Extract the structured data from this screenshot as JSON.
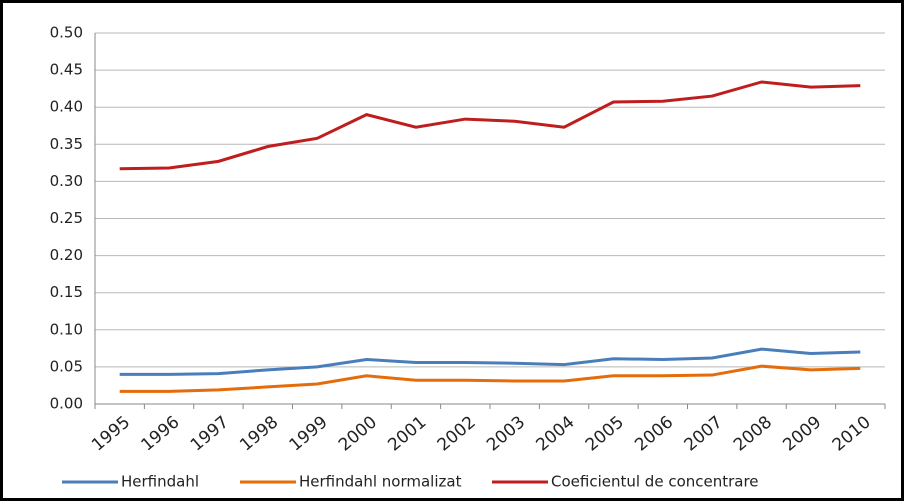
{
  "chart_data": {
    "type": "line",
    "categories": [
      "1995",
      "1996",
      "1997",
      "1998",
      "1999",
      "2000",
      "2001",
      "2002",
      "2003",
      "2004",
      "2005",
      "2006",
      "2007",
      "2008",
      "2009",
      "2010"
    ],
    "series": [
      {
        "name": "Herfindahl",
        "color": "#4a7ebb",
        "values": [
          0.04,
          0.04,
          0.041,
          0.046,
          0.05,
          0.06,
          0.056,
          0.056,
          0.055,
          0.053,
          0.061,
          0.06,
          0.062,
          0.074,
          0.068,
          0.07
        ]
      },
      {
        "name": "Herfindahl normalizat",
        "color": "#e46c0a",
        "values": [
          0.017,
          0.017,
          0.019,
          0.023,
          0.027,
          0.038,
          0.032,
          0.032,
          0.031,
          0.031,
          0.038,
          0.038,
          0.039,
          0.051,
          0.046,
          0.048
        ]
      },
      {
        "name": "Coeficientul de concentrare",
        "color": "#be1e1e",
        "values": [
          0.317,
          0.318,
          0.327,
          0.347,
          0.358,
          0.39,
          0.373,
          0.384,
          0.381,
          0.373,
          0.407,
          0.408,
          0.415,
          0.434,
          0.427,
          0.429
        ]
      }
    ],
    "ylim": [
      0,
      0.5
    ],
    "yticks": [
      {
        "value": 0,
        "label": "0.00"
      },
      {
        "value": 0.05,
        "label": "0.05"
      },
      {
        "value": 0.1,
        "label": "0.10"
      },
      {
        "value": 0.15,
        "label": "0.15"
      },
      {
        "value": 0.2,
        "label": "0.20"
      },
      {
        "value": 0.25,
        "label": "0.25"
      },
      {
        "value": 0.3,
        "label": "0.30"
      },
      {
        "value": 0.35,
        "label": "0.35"
      },
      {
        "value": 0.4,
        "label": "0.40"
      },
      {
        "value": 0.45,
        "label": "0.45"
      },
      {
        "value": 0.5,
        "label": "0.50"
      }
    ],
    "grid": true,
    "legend": "bottom"
  }
}
